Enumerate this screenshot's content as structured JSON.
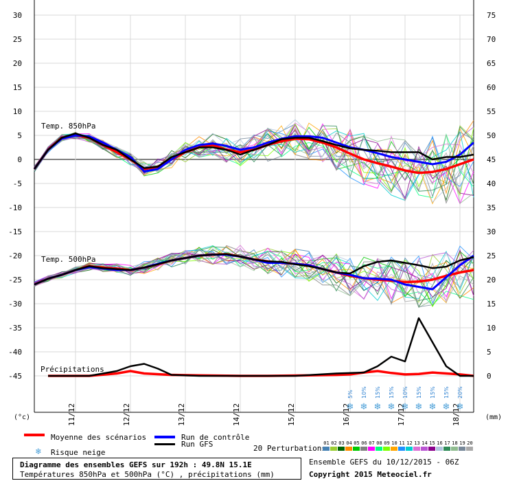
{
  "chart_data": {
    "type": "line",
    "title": "Diagramme des ensembles GEFS sur 192h : 49.8N 15.1E",
    "subtitle": "Températures 850hPa et 500hPa (°C) , précipitations (mm)",
    "left_axis": {
      "label": "(°c)",
      "range": [
        -45,
        30
      ],
      "ticks": [
        30,
        25,
        20,
        15,
        10,
        5,
        0,
        -5,
        -10,
        -15,
        -20,
        -25,
        -30,
        -35,
        -40,
        -45
      ]
    },
    "right_axis": {
      "label": "(mm)",
      "range": [
        0,
        75
      ],
      "ticks": [
        75,
        70,
        65,
        60,
        55,
        50,
        45,
        40,
        35,
        30,
        25,
        20,
        15,
        10,
        5,
        0
      ]
    },
    "x_axis": {
      "range_hours": [
        0,
        192
      ],
      "date_ticks": [
        {
          "hour": 18,
          "label": "11/12"
        },
        {
          "hour": 42,
          "label": "12/12"
        },
        {
          "hour": 66,
          "label": "13/12"
        },
        {
          "hour": 90,
          "label": "14/12"
        },
        {
          "hour": 114,
          "label": "15/12"
        },
        {
          "hour": 138,
          "label": "16/12"
        },
        {
          "hour": 162,
          "label": "17/12"
        },
        {
          "hour": 186,
          "label": "18/12"
        }
      ]
    },
    "panel_labels": {
      "t850": "Temp. 850hPa",
      "t500": "Temp. 500hPa",
      "precip": "Précipitations"
    },
    "snow_risk": [
      {
        "hour": 138,
        "percent": "5%"
      },
      {
        "hour": 144,
        "percent": "10%"
      },
      {
        "hour": 150,
        "percent": "15%"
      },
      {
        "hour": 156,
        "percent": "15%"
      },
      {
        "hour": 162,
        "percent": "10%"
      },
      {
        "hour": 168,
        "percent": "15%"
      },
      {
        "hour": 174,
        "percent": "15%"
      },
      {
        "hour": 180,
        "percent": "15%"
      },
      {
        "hour": 186,
        "percent": "20%"
      }
    ],
    "series": [
      {
        "name": "Moyenne des scénarios",
        "panel": "t850",
        "color": "#ff0000",
        "x": [
          0,
          6,
          12,
          18,
          24,
          30,
          36,
          42,
          48,
          54,
          60,
          66,
          72,
          78,
          84,
          90,
          96,
          102,
          108,
          114,
          120,
          126,
          132,
          138,
          144,
          150,
          156,
          162,
          168,
          174,
          180,
          186,
          192
        ],
        "values": [
          -2,
          2,
          4.5,
          5,
          4.5,
          3,
          1.5,
          0,
          -2,
          -1.5,
          0,
          1.5,
          2.5,
          3,
          2,
          1.5,
          2,
          3,
          3.8,
          4.3,
          4.2,
          3.5,
          2.5,
          1.2,
          0,
          -0.8,
          -1.5,
          -2.3,
          -2.8,
          -2.6,
          -2,
          -1,
          0
        ]
      },
      {
        "name": "Run de contrôle",
        "panel": "t850",
        "color": "#0000ff",
        "x": [
          0,
          6,
          12,
          18,
          24,
          30,
          36,
          42,
          48,
          54,
          60,
          66,
          72,
          78,
          84,
          90,
          96,
          102,
          108,
          114,
          120,
          126,
          132,
          138,
          144,
          150,
          156,
          162,
          168,
          174,
          180,
          186,
          192
        ],
        "values": [
          -2,
          2,
          4.3,
          5,
          4.8,
          3.5,
          2,
          0.5,
          -2.5,
          -2,
          0,
          2,
          3,
          3.3,
          2.8,
          2,
          2.5,
          3.5,
          4.3,
          4.8,
          4.8,
          4.5,
          3.5,
          2.5,
          2,
          1.3,
          0.5,
          0,
          -0.5,
          -1,
          -0.5,
          1,
          3.5
        ]
      },
      {
        "name": "Run GFS",
        "panel": "t850",
        "color": "#000000",
        "x": [
          0,
          6,
          12,
          18,
          24,
          30,
          36,
          42,
          48,
          54,
          60,
          66,
          72,
          78,
          84,
          90,
          96,
          102,
          108,
          114,
          120,
          126,
          132,
          138,
          144,
          150,
          156,
          162,
          168,
          174,
          180,
          186,
          192
        ],
        "values": [
          -2,
          2,
          4.5,
          5.4,
          4.5,
          3,
          2,
          0,
          -1.8,
          -1.5,
          0.5,
          1.5,
          2.5,
          2.5,
          2,
          1,
          2,
          3,
          4.2,
          4.5,
          4.5,
          3.8,
          3,
          2.3,
          2,
          1.8,
          1.5,
          1.5,
          1.5,
          0,
          0.5,
          0.5,
          1
        ]
      },
      {
        "name": "Moyenne des scénarios",
        "panel": "t500",
        "color": "#ff0000",
        "x": [
          0,
          6,
          12,
          18,
          24,
          30,
          36,
          42,
          48,
          54,
          60,
          66,
          72,
          78,
          84,
          90,
          96,
          102,
          108,
          114,
          120,
          126,
          132,
          138,
          144,
          150,
          156,
          162,
          168,
          174,
          180,
          186,
          192
        ],
        "values": [
          -26,
          -24.8,
          -24,
          -23,
          -22.2,
          -22.5,
          -22.7,
          -23,
          -22.5,
          -21.8,
          -21,
          -20.5,
          -20,
          -19.8,
          -19.7,
          -20.2,
          -20.8,
          -21.2,
          -21.5,
          -21.7,
          -22,
          -22.8,
          -23.5,
          -24.2,
          -24.7,
          -25,
          -25.2,
          -25.5,
          -25.4,
          -25,
          -24.2,
          -23.5,
          -23
        ]
      },
      {
        "name": "Run de contrôle",
        "panel": "t500",
        "color": "#0000ff",
        "x": [
          0,
          6,
          12,
          18,
          24,
          30,
          36,
          42,
          48,
          54,
          60,
          66,
          72,
          78,
          84,
          90,
          96,
          102,
          108,
          114,
          120,
          126,
          132,
          138,
          144,
          150,
          156,
          162,
          168,
          174,
          180,
          186,
          192
        ],
        "values": [
          -26,
          -24.8,
          -24,
          -23,
          -22.4,
          -22.7,
          -23,
          -23,
          -22.5,
          -21.7,
          -21,
          -20.5,
          -20,
          -19.8,
          -19.8,
          -20.2,
          -20.8,
          -21.5,
          -21.5,
          -21.7,
          -22,
          -22.8,
          -23.5,
          -24,
          -24.7,
          -24.8,
          -25,
          -26,
          -26.5,
          -27,
          -24.5,
          -22,
          -20
        ]
      },
      {
        "name": "Run GFS",
        "panel": "t500",
        "color": "#000000",
        "x": [
          0,
          6,
          12,
          18,
          24,
          30,
          36,
          42,
          48,
          54,
          60,
          66,
          72,
          78,
          84,
          90,
          96,
          102,
          108,
          114,
          120,
          126,
          132,
          138,
          144,
          150,
          156,
          162,
          168,
          174,
          180,
          186,
          192
        ],
        "values": [
          -26,
          -24.8,
          -24,
          -23,
          -22.2,
          -22.6,
          -22.8,
          -23,
          -22.5,
          -21.8,
          -21,
          -20.5,
          -20,
          -19.8,
          -19.7,
          -20.2,
          -20.8,
          -21.2,
          -21.3,
          -21.8,
          -22.2,
          -22.8,
          -23.5,
          -23.7,
          -22.2,
          -21.3,
          -21,
          -21.5,
          -22,
          -22.6,
          -22.3,
          -21,
          -20.3
        ]
      },
      {
        "name": "Moyenne des scénarios",
        "panel": "precip",
        "color": "#ff0000",
        "x": [
          6,
          24,
          36,
          42,
          48,
          60,
          72,
          90,
          102,
          120,
          132,
          138,
          144,
          150,
          156,
          162,
          168,
          174,
          180,
          186,
          192
        ],
        "values": [
          0,
          0,
          0.5,
          1,
          0.5,
          0.2,
          0.1,
          0,
          0,
          0.1,
          0.2,
          0.3,
          0.7,
          1,
          0.6,
          0.3,
          0.4,
          0.7,
          0.5,
          0.3,
          0
        ]
      },
      {
        "name": "Run GFS",
        "panel": "precip",
        "color": "#000000",
        "x": [
          6,
          24,
          36,
          42,
          48,
          54,
          60,
          72,
          90,
          114,
          132,
          144,
          150,
          156,
          162,
          168,
          174,
          180,
          186,
          192
        ],
        "values": [
          0,
          0,
          1,
          2,
          2.5,
          1.5,
          0.2,
          0,
          0,
          0,
          0.5,
          0.7,
          2,
          4,
          3,
          12,
          7,
          2,
          0,
          0
        ]
      }
    ]
  },
  "legend": {
    "mean_label": "Moyenne des scénarios",
    "control_label": "Run de contrôle",
    "gfs_label": "Run GFS",
    "snow_label": "Risque neige",
    "perturbations_label": "20 Perturbations",
    "mean_color": "#ff0000",
    "control_color": "#0000ff",
    "gfs_color": "#000000",
    "perturbation_numbers": [
      "01",
      "02",
      "03",
      "04",
      "05",
      "06",
      "07",
      "08",
      "09",
      "10",
      "11",
      "12",
      "13",
      "14",
      "15",
      "16",
      "17",
      "18",
      "19",
      "20"
    ],
    "perturbation_colors": [
      "#4682b4",
      "#9acd32",
      "#006400",
      "#ff8c00",
      "#00c800",
      "#808080",
      "#ff00ff",
      "#00ff7f",
      "#7fff00",
      "#ffa500",
      "#1e90ff",
      "#00ced1",
      "#da70d6",
      "#ba55d3",
      "#8b008b",
      "#b0c4de",
      "#2e8b57",
      "#8fbc8f",
      "#778899",
      "#a9a9a9"
    ]
  },
  "footer": {
    "title": "Diagramme des ensembles GEFS sur 192h : 49.8N 15.1E",
    "subtitle": "Températures 850hPa et 500hPa (°C) , précipitations (mm)",
    "run_info": "Ensemble GEFS du 10/12/2015 - 06Z",
    "copyright": "Copyright 2015 Meteociel.fr"
  }
}
